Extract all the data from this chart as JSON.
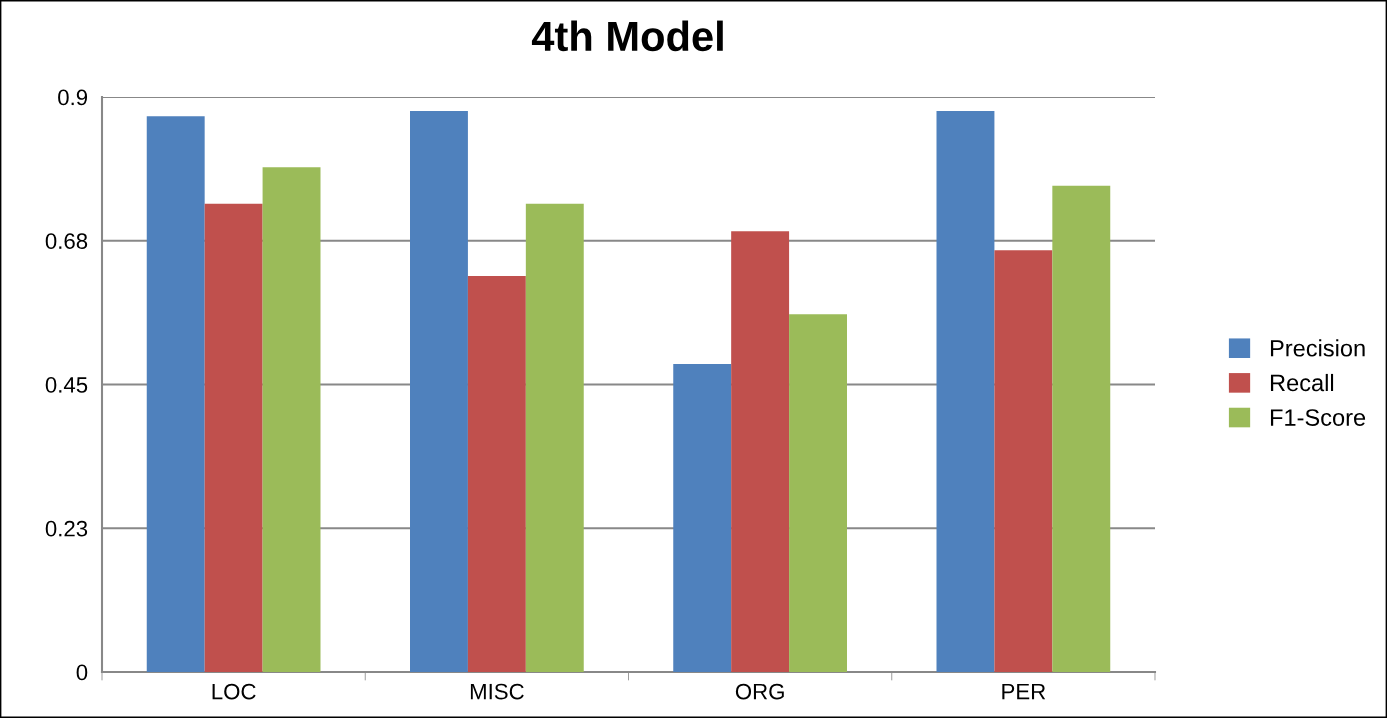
{
  "chart_data": {
    "type": "bar",
    "title": "4th Model",
    "categories": [
      "LOC",
      "MISC",
      "ORG",
      "PER"
    ],
    "series": [
      {
        "name": "Precision",
        "color": "#4f81bd",
        "values": [
          0.87,
          0.878,
          0.482,
          0.878
        ]
      },
      {
        "name": "Recall",
        "color": "#c0504d",
        "values": [
          0.733,
          0.62,
          0.69,
          0.66
        ]
      },
      {
        "name": "F1-Score",
        "color": "#9bbb59",
        "values": [
          0.79,
          0.733,
          0.56,
          0.761
        ]
      }
    ],
    "ylim": [
      0,
      0.9
    ],
    "yticks": [
      0,
      {
        "value": 0.225,
        "label": "0.23"
      },
      {
        "value": 0.45,
        "label": "0.45"
      },
      {
        "value": 0.675,
        "label": "0.68"
      },
      0.9
    ],
    "grid": "y",
    "legend": "right"
  }
}
